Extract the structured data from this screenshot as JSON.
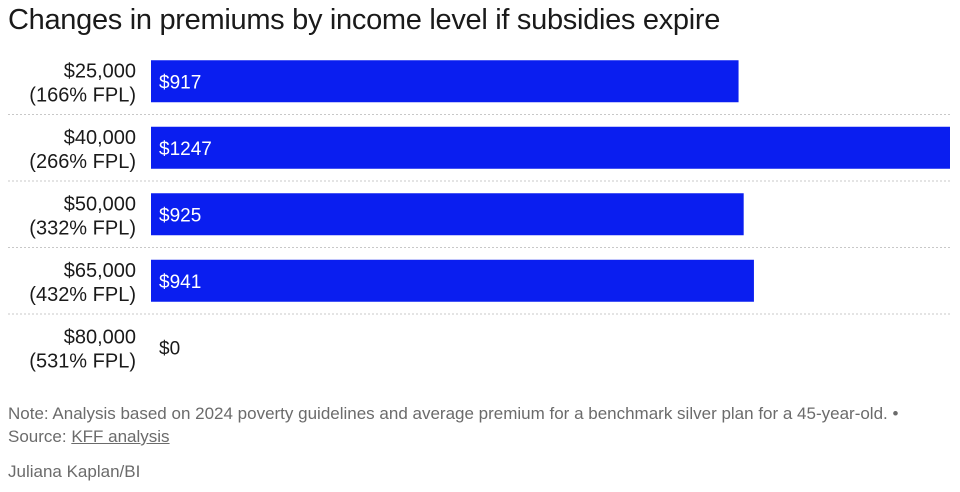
{
  "title": "Changes in premiums by income level if subsidies expire",
  "chart_data": {
    "type": "bar",
    "orientation": "horizontal",
    "categories": [
      [
        "$25,000",
        "(166% FPL)"
      ],
      [
        "$40,000",
        "(266% FPL)"
      ],
      [
        "$50,000",
        "(332% FPL)"
      ],
      [
        "$65,000",
        "(432% FPL)"
      ],
      [
        "$80,000",
        "(531% FPL)"
      ]
    ],
    "values": [
      917,
      1247,
      925,
      941,
      0
    ],
    "value_labels": [
      "$917",
      "$1247",
      "$925",
      "$941",
      "$0"
    ],
    "xlim": [
      0,
      1247
    ],
    "grid": false,
    "legend": "none",
    "bar_color": "#0a1ef0",
    "separator_color": "#c8c8c8"
  },
  "note": {
    "text": "Note: Analysis based on 2024 poverty guidelines and average premium for a benchmark silver plan for a 45-year-old. • Source: ",
    "source_link": "KFF analysis"
  },
  "byline": "Juliana Kaplan/BI"
}
